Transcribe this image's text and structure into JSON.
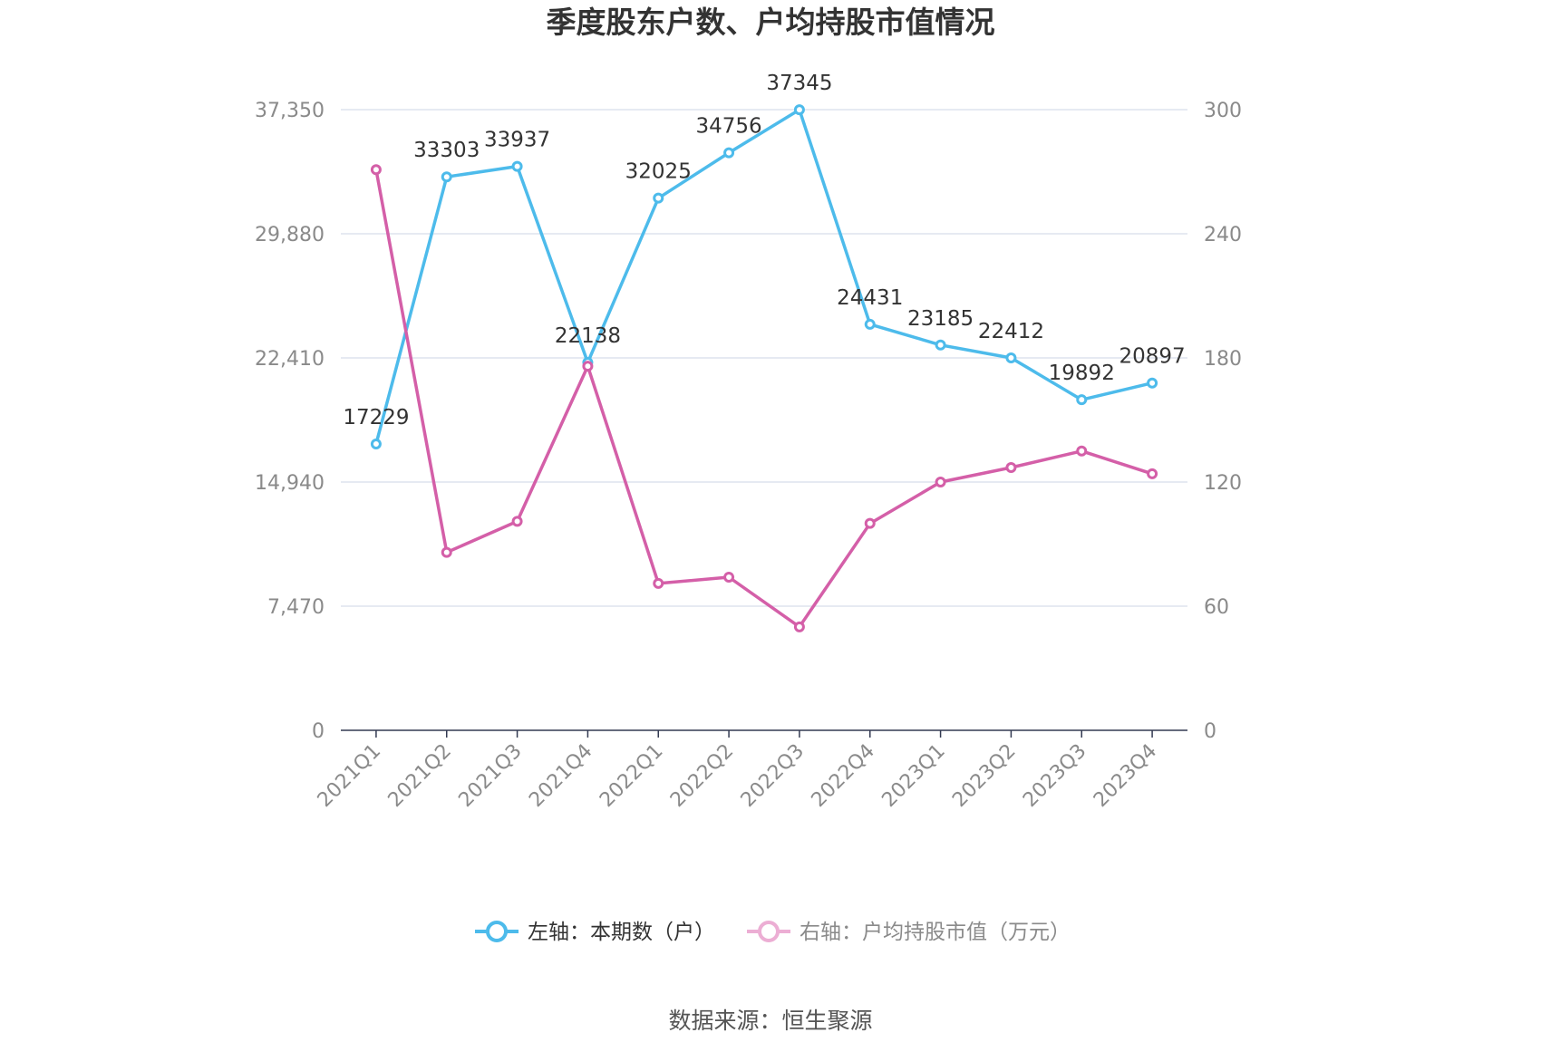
{
  "chart_data": {
    "type": "line",
    "title": "季度股东户数、户均持股市值情况",
    "categories": [
      "2021Q1",
      "2021Q2",
      "2021Q3",
      "2021Q4",
      "2022Q1",
      "2022Q2",
      "2022Q3",
      "2022Q4",
      "2023Q1",
      "2023Q2",
      "2023Q3",
      "2023Q4"
    ],
    "left_axis": {
      "ticks": [
        "0",
        "7,470",
        "14,940",
        "22,410",
        "29,880",
        "37,350"
      ],
      "ylim": [
        0,
        37350
      ]
    },
    "right_axis": {
      "ticks": [
        "0",
        "60",
        "120",
        "180",
        "240",
        "300"
      ],
      "ylim": [
        0,
        300
      ]
    },
    "series": [
      {
        "name": "左轴：本期数（户）",
        "axis": "left",
        "color": "#4dbbeb",
        "values": [
          17229,
          33303,
          33937,
          22138,
          32025,
          34756,
          37345,
          24431,
          23185,
          22412,
          19892,
          20897
        ],
        "labels": [
          "17229",
          "33303",
          "33937",
          "22138",
          "32025",
          "34756",
          "37345",
          "24431",
          "23185",
          "22412",
          "19892",
          "20897"
        ]
      },
      {
        "name": "右轴：户均持股市值（万元）",
        "axis": "right",
        "color": "#d45fa8",
        "values": [
          271,
          86,
          101,
          176,
          71,
          74,
          50,
          100,
          120,
          127,
          135,
          124
        ]
      }
    ],
    "grid": true,
    "legend": "bottom"
  },
  "source": "数据来源：恒生聚源",
  "colors": {
    "grid": "#dde3ee",
    "axis": "#333a52",
    "legend_inactive_text": "#8a8a8a",
    "legend_active_text": "#333333"
  }
}
